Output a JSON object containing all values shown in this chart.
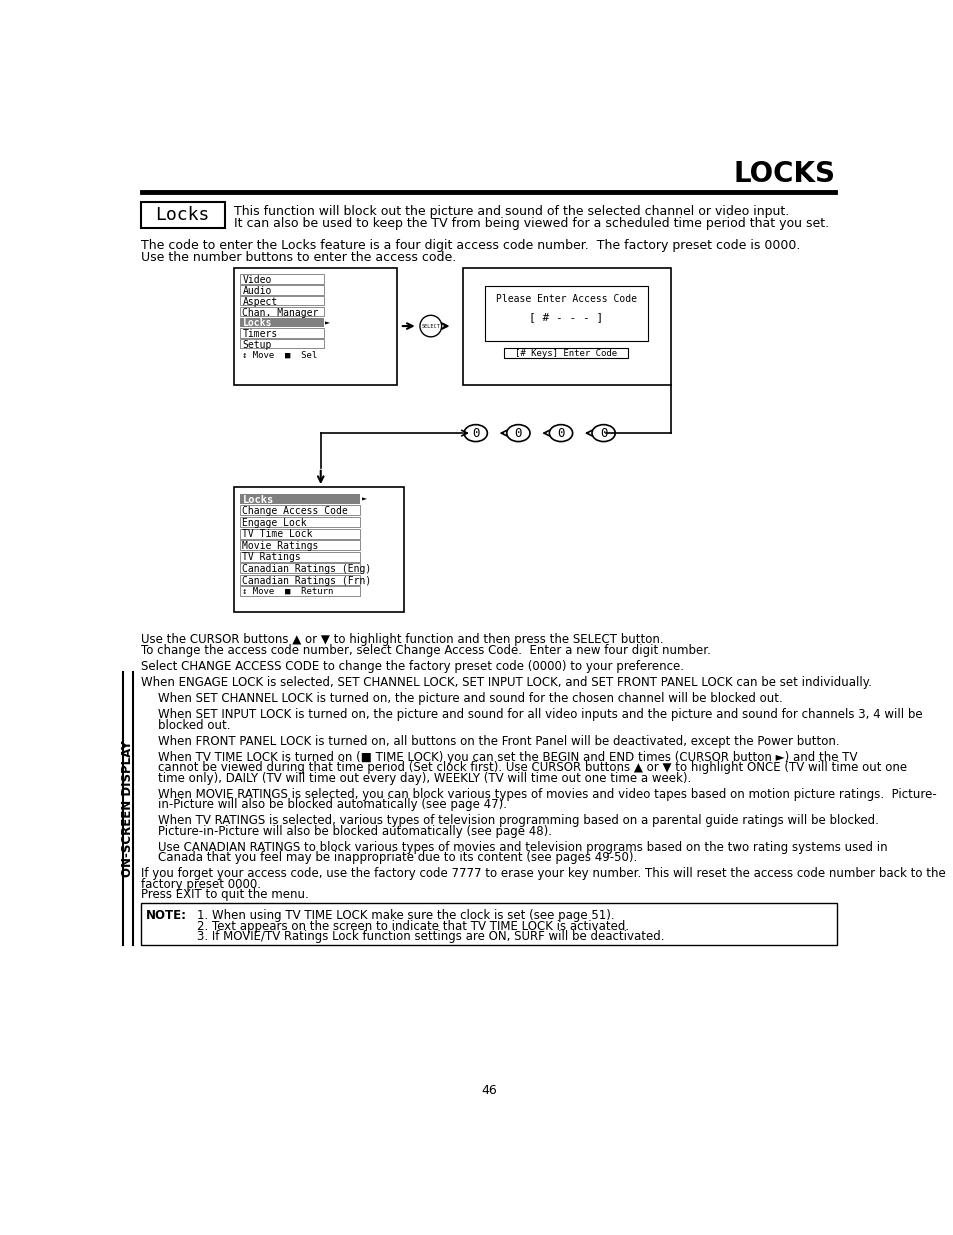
{
  "title": "LOCKS",
  "bg_color": "#ffffff",
  "text_color": "#000000",
  "page_number": "46",
  "locks_box_label": "Locks",
  "locks_desc_line1": "This function will block out the picture and sound of the selected channel or video input.",
  "locks_desc_line2": "It can also be used to keep the TV from being viewed for a scheduled time period that you set.",
  "intro_line1": "The code to enter the Locks feature is a four digit access code number.  The factory preset code is 0000.",
  "intro_line2": "Use the number buttons to enter the access code.",
  "menu1_items": [
    "Video",
    "Audio",
    "Aspect",
    "Chan. Manager",
    "Locks",
    "Timers",
    "Setup",
    "↕ Move  ■  Sel"
  ],
  "menu2_items": [
    "Locks",
    "Change Access Code",
    "Engage Lock",
    "TV Time Lock",
    "Movie Ratings",
    "TV Ratings",
    "Canadian Ratings (Eng)",
    "Canadian Ratings (Frn)",
    "↕ Move  ■  Return"
  ],
  "access_code_box_line1": "Please Enter Access Code",
  "access_code_box_line2": "[ # - - - ]",
  "access_code_box_line3": "[# Keys] Enter Code",
  "note_label": "NOTE:",
  "note_items": [
    "1. When using TV TIME LOCK make sure the clock is set (see page 51).",
    "2. Text appears on the screen to indicate that TV TIME LOCK is activated.",
    "3. If MOVIE/TV Ratings Lock function settings are ON, SURF will be deactivated."
  ],
  "sidebar_text": "ON-SCREEN DISPLAY"
}
